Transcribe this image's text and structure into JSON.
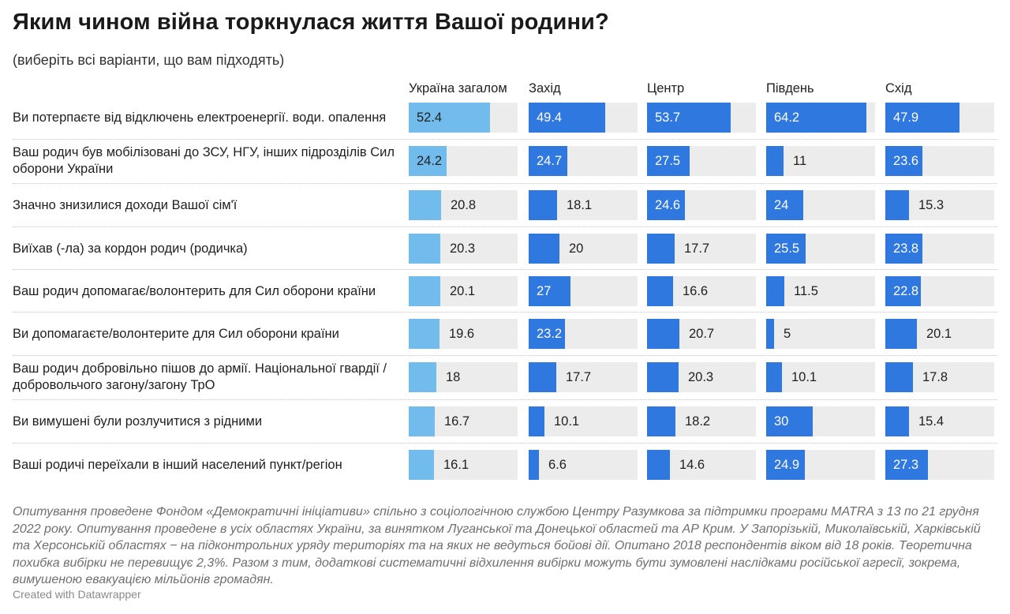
{
  "title": "Яким чином війна торкнулася життя Вашої родини?",
  "subtitle": "(виберіть всі варіанти, що вам підходять)",
  "colors": {
    "ukraine": "#71bcec",
    "region": "#2f78e0",
    "track": "#ececec"
  },
  "chart_data": {
    "type": "bar",
    "columns": [
      "Україна загалом",
      "Захід",
      "Центр",
      "Південь",
      "Схід"
    ],
    "categories": [
      "Ви потерпаєте від відключень електроенергії. води. опалення",
      "Ваш родич був мобілізовані до ЗСУ, НГУ, інших підрозділів Сил оборони України",
      "Значно знизилися доходи Вашої сім'ї",
      "Виїхав (-ла) за кордон родич (родичка)",
      "Ваш родич допомагає/волонтерить для Сил оборони країни",
      "Ви допомагаєте/волонтерите для Сил оборони країни",
      "Ваш родич добровільно пішов до армії. Національної гвардії / добровольчого загону/загону ТрО",
      "Ви вимушені були розлучитися з рідними",
      "Ваші родичі переїхали в інший населений пункт/регіон"
    ],
    "series": [
      {
        "name": "Україна загалом",
        "values": [
          52.4,
          24.2,
          20.8,
          20.3,
          20.1,
          19.6,
          18,
          16.7,
          16.1
        ]
      },
      {
        "name": "Захід",
        "values": [
          49.4,
          24.7,
          18.1,
          20,
          27,
          23.2,
          17.7,
          10.1,
          6.6
        ]
      },
      {
        "name": "Центр",
        "values": [
          53.7,
          27.5,
          24.6,
          17.7,
          16.6,
          20.7,
          20.3,
          18.2,
          14.6
        ]
      },
      {
        "name": "Південь",
        "values": [
          64.2,
          11,
          24,
          25.5,
          11.5,
          5,
          10.1,
          30,
          24.9
        ]
      },
      {
        "name": "Схід",
        "values": [
          47.9,
          23.6,
          15.3,
          23.8,
          22.8,
          20.1,
          17.8,
          15.4,
          27.3
        ]
      }
    ],
    "max_value": 70
  },
  "footnote": "Опитування проведене Фондом «Демократичні ініціативи» спільно з соціологічною службою Центру Разумкова за підтримки програми MATRA з 13 по 21 грудня 2022 року. Опитування проведене в усіх областях України, за винятком Луганської та Донецької областей та АР Крим. У Запорізькій, Миколаївській, Харківській та Херсонській областях − на підконтрольних уряду територіях та на яких не ведуться бойові дії. Опитано 2018 респондентів віком від 18 років. Теоретична похибка вибірки не перевищує 2,3%. Разом з тим, додаткові систематичні відхилення вибірки можуть бути зумовлені наслідками російської агресії, зокрема, вимушеною евакуацією мільйонів громадян.",
  "credit": "Created with Datawrapper"
}
